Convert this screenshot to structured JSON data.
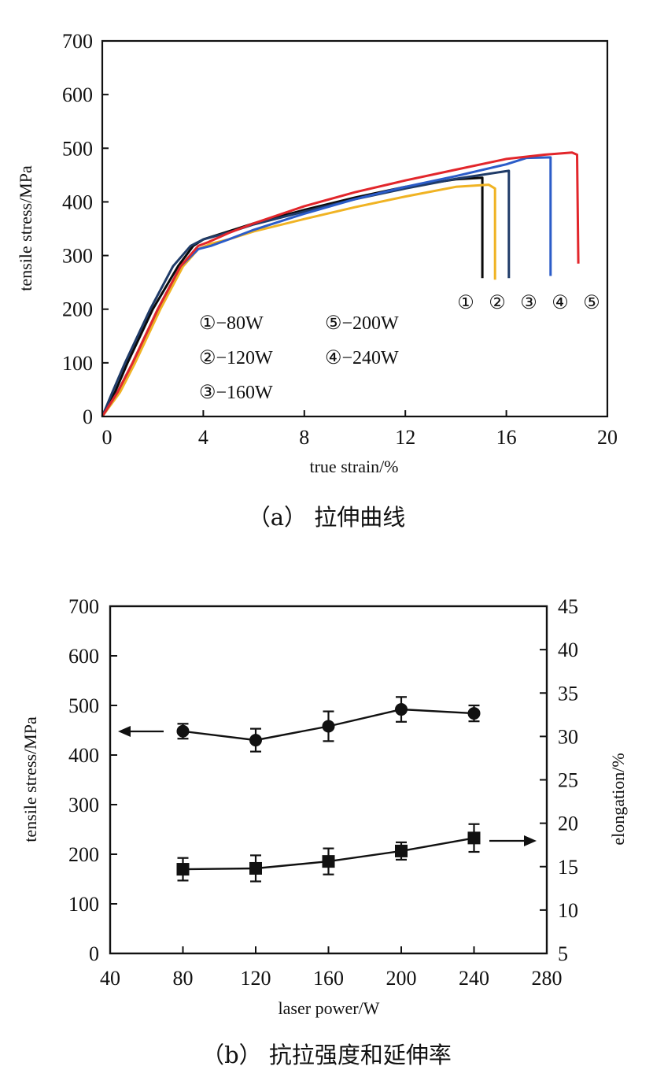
{
  "chart_data": [
    {
      "type": "line",
      "caption": "（a） 拉伸曲线",
      "xlabel": "true strain/%",
      "ylabel": "tensile stress/MPa",
      "xlim": [
        0,
        20
      ],
      "ylim": [
        0,
        700
      ],
      "x_ticks": [
        "0",
        "4",
        "8",
        "12",
        "16",
        "20"
      ],
      "y_ticks": [
        "0",
        "100",
        "200",
        "300",
        "400",
        "500",
        "600",
        "700"
      ],
      "legend": [
        "①−80W",
        "⑤−200W",
        "②−120W",
        "④−240W",
        "③−160W"
      ],
      "curve_markers": [
        "①",
        "②",
        "③",
        "④",
        "⑤"
      ],
      "series": [
        {
          "name": "①−80W",
          "color": "#0a0a0a",
          "points": [
            [
              0,
              0
            ],
            [
              0.5,
              45
            ],
            [
              1,
              100
            ],
            [
              2,
              200
            ],
            [
              3,
              280
            ],
            [
              3.6,
              318
            ],
            [
              4,
              330
            ],
            [
              5,
              345
            ],
            [
              6,
              360
            ],
            [
              8,
              385
            ],
            [
              10,
              408
            ],
            [
              12,
              428
            ],
            [
              14,
              442
            ],
            [
              15.05,
              445
            ],
            [
              15.05,
              258
            ]
          ]
        },
        {
          "name": "②−120W",
          "color": "#f0b323",
          "points": [
            [
              0,
              0
            ],
            [
              0.7,
              45
            ],
            [
              1.3,
              100
            ],
            [
              2.3,
              200
            ],
            [
              3.2,
              280
            ],
            [
              3.8,
              312
            ],
            [
              4.3,
              322
            ],
            [
              5,
              330
            ],
            [
              6,
              345
            ],
            [
              8,
              368
            ],
            [
              10,
              390
            ],
            [
              12,
              410
            ],
            [
              14,
              428
            ],
            [
              15.3,
              432
            ],
            [
              15.55,
              425
            ],
            [
              15.55,
              255
            ]
          ]
        },
        {
          "name": "③−160W",
          "color": "#1f3b68",
          "points": [
            [
              0,
              0
            ],
            [
              0.4,
              45
            ],
            [
              0.9,
              100
            ],
            [
              1.9,
              200
            ],
            [
              2.8,
              280
            ],
            [
              3.5,
              318
            ],
            [
              4,
              330
            ],
            [
              5,
              343
            ],
            [
              6,
              358
            ],
            [
              8,
              382
            ],
            [
              10,
              405
            ],
            [
              12,
              425
            ],
            [
              14,
              443
            ],
            [
              16.1,
              458
            ],
            [
              16.1,
              258
            ]
          ]
        },
        {
          "name": "④−240W",
          "color": "#2b5cc8",
          "points": [
            [
              0,
              0
            ],
            [
              0.6,
              45
            ],
            [
              1.2,
              100
            ],
            [
              2.2,
              200
            ],
            [
              3.1,
              280
            ],
            [
              3.8,
              312
            ],
            [
              4.3,
              318
            ],
            [
              5,
              330
            ],
            [
              6,
              348
            ],
            [
              8,
              378
            ],
            [
              10,
              405
            ],
            [
              12,
              428
            ],
            [
              14,
              448
            ],
            [
              16,
              470
            ],
            [
              16.8,
              482
            ],
            [
              17.75,
              483
            ],
            [
              17.75,
              262
            ]
          ]
        },
        {
          "name": "⑤−200W",
          "color": "#e2262b",
          "points": [
            [
              0,
              0
            ],
            [
              0.6,
              45
            ],
            [
              1.2,
              100
            ],
            [
              2.2,
              200
            ],
            [
              3.1,
              280
            ],
            [
              3.8,
              318
            ],
            [
              4.2,
              325
            ],
            [
              5,
              342
            ],
            [
              6,
              360
            ],
            [
              8,
              392
            ],
            [
              10,
              418
            ],
            [
              12,
              440
            ],
            [
              14,
              460
            ],
            [
              16,
              480
            ],
            [
              17.5,
              488
            ],
            [
              18.6,
              492
            ],
            [
              18.8,
              488
            ],
            [
              18.85,
              285
            ]
          ]
        }
      ]
    },
    {
      "type": "line",
      "caption": "（b） 抗拉强度和延伸率",
      "xlabel": "laser power/W",
      "ylabel": "tensile stress/MPa",
      "y2label": "elongation/%",
      "xlim": [
        40,
        280
      ],
      "ylim": [
        0,
        700
      ],
      "y2lim": [
        5,
        45
      ],
      "x_ticks": [
        "40",
        "80",
        "120",
        "160",
        "200",
        "240",
        "280"
      ],
      "y_ticks": [
        "0",
        "100",
        "200",
        "300",
        "400",
        "500",
        "600",
        "700"
      ],
      "y2_ticks": [
        "5",
        "10",
        "15",
        "20",
        "25",
        "30",
        "35",
        "40",
        "45"
      ],
      "series": [
        {
          "axis": "left",
          "marker": "circle",
          "color": "#111111",
          "x": [
            80,
            120,
            160,
            200,
            240
          ],
          "y": [
            448,
            430,
            458,
            492,
            484
          ],
          "err": [
            15,
            23,
            30,
            25,
            16
          ]
        },
        {
          "axis": "right",
          "marker": "square",
          "color": "#111111",
          "x": [
            80,
            120,
            160,
            200,
            240
          ],
          "y": [
            14.7,
            14.8,
            15.6,
            16.8,
            18.3
          ],
          "err": [
            1.3,
            1.5,
            1.5,
            1.0,
            1.6
          ]
        }
      ]
    }
  ]
}
